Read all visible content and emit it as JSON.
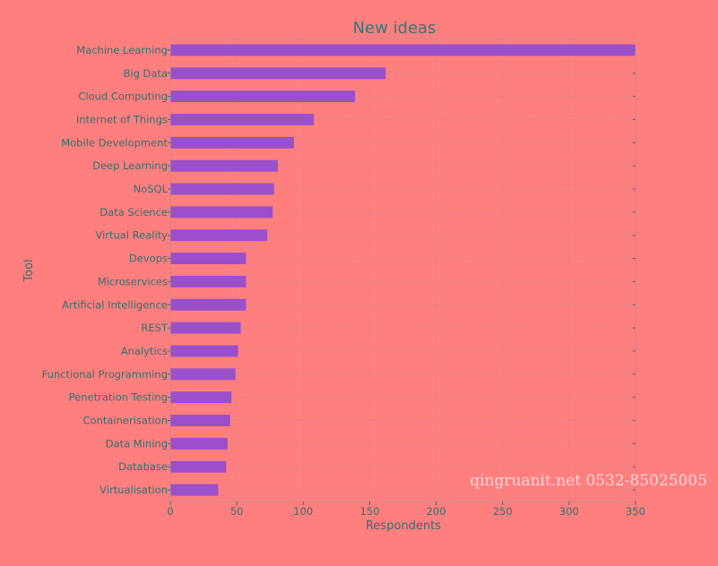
{
  "chart_data": {
    "type": "bar",
    "orientation": "horizontal",
    "title": "New ideas",
    "xlabel": "Respondents",
    "ylabel": "Tool",
    "categories": [
      "Machine Learning",
      "Big Data",
      "Cloud Computing",
      "Internet of Things",
      "Mobile Development",
      "Deep Learning",
      "NoSQL",
      "Data Science",
      "Virtual Reality",
      "Devops",
      "Microservices",
      "Artificial Intelligence",
      "REST",
      "Analytics",
      "Functional Programming",
      "Penetration Testing",
      "Containerisation",
      "Data Mining",
      "Database",
      "Virtualisation"
    ],
    "values": [
      350,
      162,
      139,
      108,
      93,
      81,
      78,
      77,
      73,
      57,
      57,
      57,
      53,
      51,
      49,
      46,
      45,
      43,
      42,
      36
    ],
    "xlim": [
      0,
      350
    ],
    "xticks": [
      0,
      50,
      100,
      150,
      200,
      250,
      300,
      350
    ],
    "grid": true,
    "bar_color": "#9a4fcb",
    "text_color": "#2f6f73",
    "background_color": "#ff7f7f"
  },
  "watermark": "qingruanit.net 0532-85025005"
}
